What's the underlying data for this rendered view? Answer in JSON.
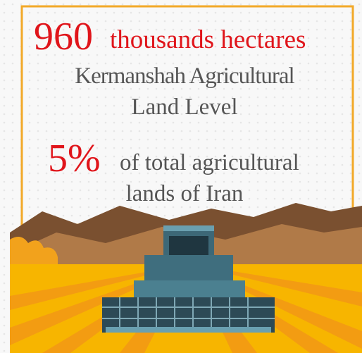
{
  "headline": {
    "number": "960",
    "unit": "thousands hectares"
  },
  "description": [
    "Kermanshah Agricultural",
    "Land Level"
  ],
  "share": {
    "number": "5%",
    "text": "of total agricultural",
    "text_rest": "lands of Iran"
  }
}
